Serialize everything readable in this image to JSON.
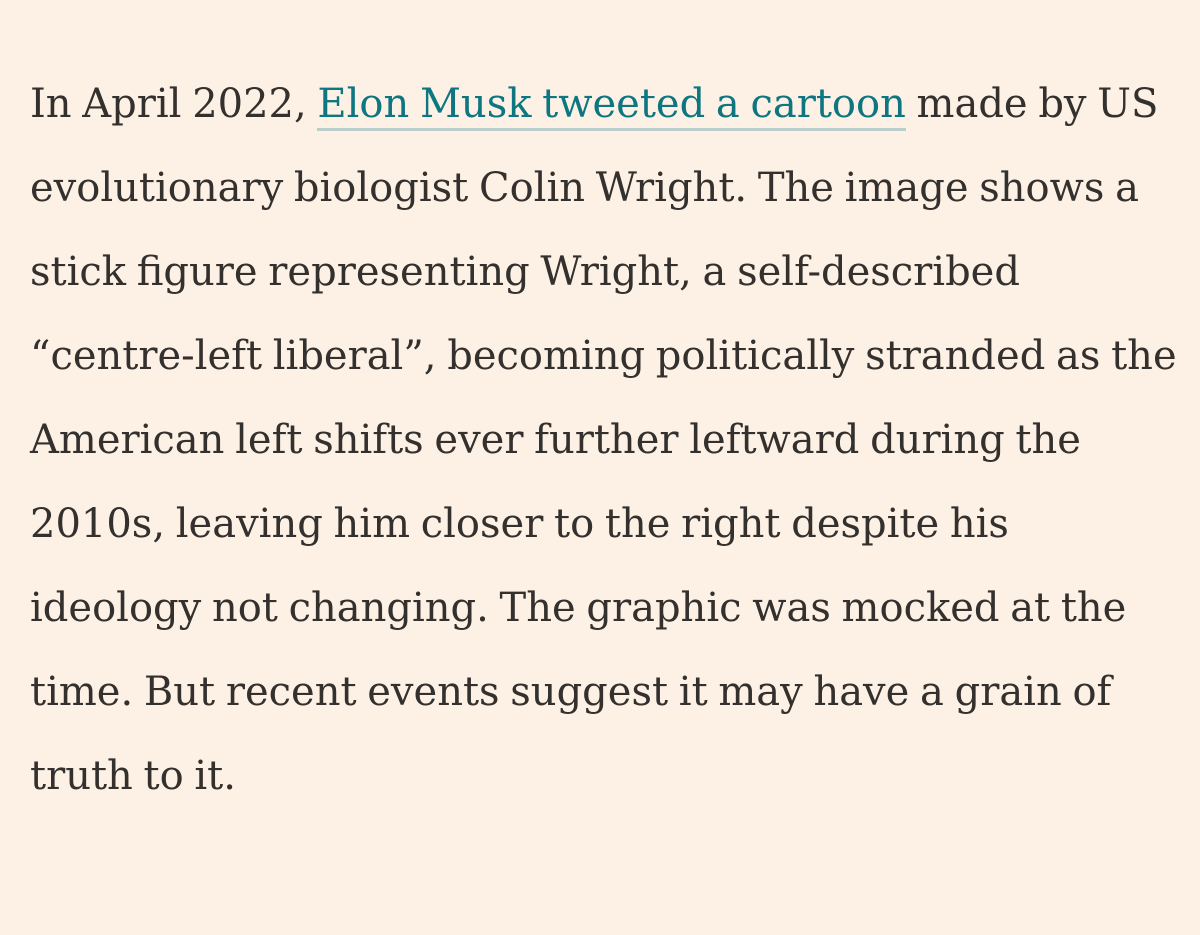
{
  "article": {
    "paragraph": {
      "before_link": "In April 2022, ",
      "link_text": "Elon Musk tweeted a cartoon",
      "after_link": " made by US evolutionary biologist Colin Wright. The image shows a stick figure representing Wright, a self-described “centre-left liberal”, becoming politically stranded as the American left shifts ever further leftward during the 2010s, leaving him closer to the right despite his ideology not changing. The graphic was mocked at the time. But recent events suggest it may have a grain of truth to it."
    },
    "colors": {
      "background": "#fdf1e5",
      "text": "#33302e",
      "link": "#0d7680",
      "link_underline": "#b9cdca"
    }
  }
}
